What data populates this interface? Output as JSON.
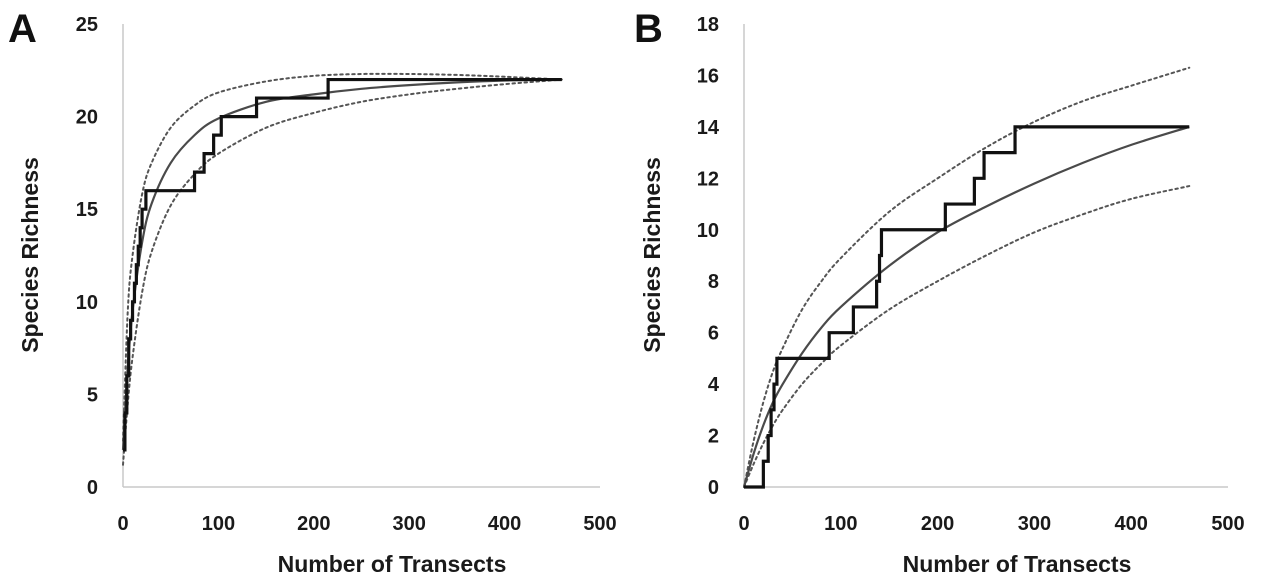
{
  "chart_data": [
    {
      "panel": "A",
      "type": "line",
      "xlabel": "Number of Transects",
      "ylabel": "Species Richness",
      "xlim": [
        0,
        500
      ],
      "ylim": [
        0,
        25
      ],
      "xticks": [
        0,
        100,
        200,
        300,
        400,
        500
      ],
      "yticks": [
        0,
        5,
        10,
        15,
        20,
        25
      ],
      "grid": false,
      "colors": {
        "observed": "#111111",
        "fitted": "#4a4a4a",
        "ci": "#555555"
      },
      "series": [
        {
          "role": "observed",
          "style": "step",
          "x": [
            0,
            2,
            4,
            6,
            8,
            10,
            12,
            14,
            16,
            18,
            20,
            22,
            24,
            26,
            30,
            70,
            75,
            85,
            95,
            103,
            110,
            140,
            145,
            212,
            215,
            460
          ],
          "y": [
            2,
            4,
            6,
            8,
            9,
            10,
            11,
            12,
            13,
            14,
            15,
            15,
            16,
            16,
            16,
            16,
            17,
            18,
            19,
            20,
            20,
            21,
            21,
            21,
            22,
            22
          ]
        },
        {
          "role": "fitted",
          "style": "smooth",
          "x": [
            0,
            5,
            10,
            20,
            30,
            50,
            75,
            100,
            150,
            200,
            250,
            300,
            350,
            400,
            460
          ],
          "y": [
            2,
            6.5,
            9.5,
            13.2,
            15.3,
            17.5,
            19.0,
            19.9,
            20.8,
            21.2,
            21.5,
            21.7,
            21.85,
            21.95,
            22
          ]
        },
        {
          "role": "upper-ci",
          "style": "dotted",
          "x": [
            0,
            5,
            10,
            20,
            30,
            50,
            75,
            100,
            150,
            200,
            250,
            300,
            350,
            400,
            460
          ],
          "y": [
            2.5,
            9.5,
            12.5,
            15.8,
            17.5,
            19.4,
            20.6,
            21.3,
            21.9,
            22.2,
            22.3,
            22.3,
            22.25,
            22.15,
            22
          ]
        },
        {
          "role": "lower-ci",
          "style": "dotted",
          "x": [
            0,
            5,
            10,
            20,
            30,
            50,
            75,
            100,
            150,
            200,
            250,
            300,
            350,
            400,
            460
          ],
          "y": [
            1.2,
            4.5,
            7.0,
            10.5,
            12.7,
            15.2,
            16.9,
            18.0,
            19.4,
            20.2,
            20.8,
            21.2,
            21.5,
            21.75,
            22
          ]
        }
      ]
    },
    {
      "panel": "B",
      "type": "line",
      "xlabel": "Number of Transects",
      "ylabel": "Species Richness",
      "xlim": [
        0,
        500
      ],
      "ylim": [
        0,
        18
      ],
      "xticks": [
        0,
        100,
        200,
        300,
        400,
        500
      ],
      "yticks": [
        0,
        2,
        4,
        6,
        8,
        10,
        12,
        14,
        16,
        18
      ],
      "grid": false,
      "colors": {
        "observed": "#111111",
        "fitted": "#4a4a4a",
        "ci": "#555555"
      },
      "series": [
        {
          "role": "observed",
          "style": "step",
          "x": [
            0,
            17,
            20,
            25,
            28,
            31,
            34,
            86,
            88,
            110,
            113,
            135,
            137,
            140,
            142,
            205,
            208,
            235,
            238,
            245,
            248,
            265,
            280,
            460
          ],
          "y": [
            0,
            0,
            1,
            2,
            3,
            4,
            5,
            5,
            6,
            6,
            7,
            7,
            8,
            9,
            10,
            10,
            11,
            11,
            12,
            12,
            13,
            13,
            14,
            14
          ]
        },
        {
          "role": "fitted",
          "style": "smooth",
          "x": [
            0,
            10,
            20,
            30,
            40,
            60,
            80,
            100,
            150,
            200,
            250,
            300,
            350,
            400,
            460
          ],
          "y": [
            0,
            1.3,
            2.4,
            3.3,
            4.0,
            5.2,
            6.2,
            7.0,
            8.6,
            9.9,
            10.9,
            11.8,
            12.6,
            13.3,
            14
          ]
        },
        {
          "role": "upper-ci",
          "style": "dotted",
          "x": [
            0,
            10,
            20,
            30,
            40,
            60,
            80,
            100,
            150,
            200,
            250,
            300,
            350,
            400,
            460
          ],
          "y": [
            0,
            1.8,
            3.3,
            4.5,
            5.4,
            6.9,
            8.0,
            8.9,
            10.7,
            12.0,
            13.2,
            14.2,
            15.0,
            15.6,
            16.3
          ]
        },
        {
          "role": "lower-ci",
          "style": "dotted",
          "x": [
            0,
            10,
            20,
            30,
            40,
            60,
            80,
            100,
            150,
            200,
            250,
            300,
            350,
            400,
            460
          ],
          "y": [
            0,
            0.9,
            1.7,
            2.4,
            3.0,
            4.0,
            4.8,
            5.5,
            6.9,
            8.0,
            9.0,
            9.9,
            10.6,
            11.2,
            11.7
          ]
        }
      ]
    }
  ]
}
